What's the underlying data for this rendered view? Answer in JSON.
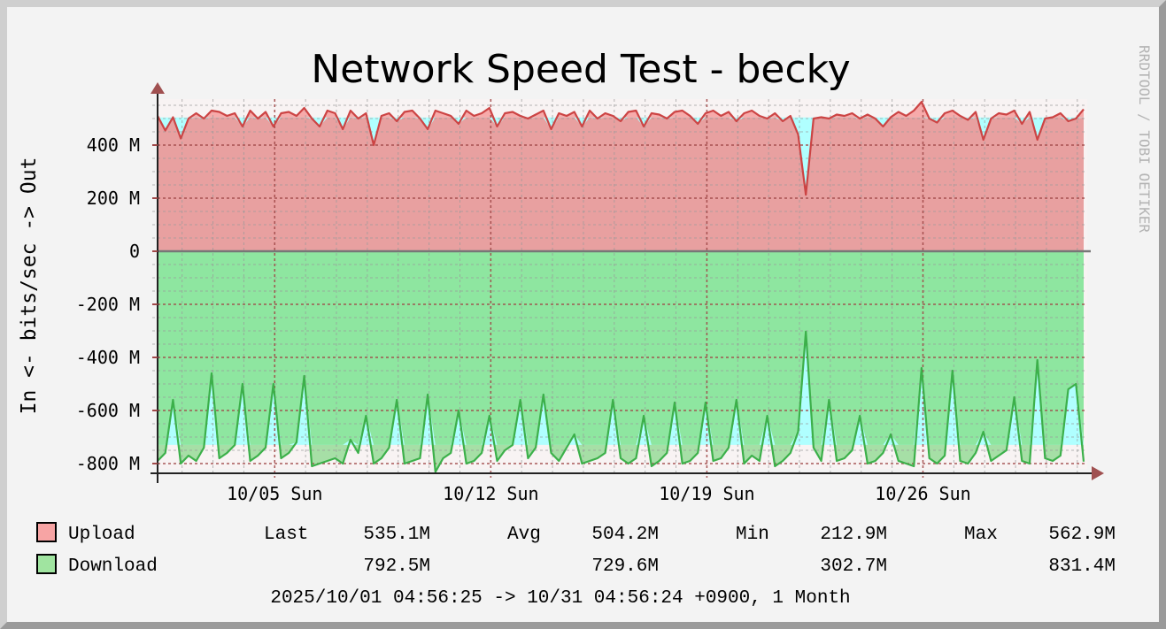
{
  "chart_data": {
    "type": "area",
    "title": "Network Speed Test - becky",
    "ylabel": "In <-  bits/sec -> Out",
    "watermark": "RRDTOOL / TOBI OETIKER",
    "ylim": [
      -837,
      573
    ],
    "y_ticks": [
      {
        "value": 400,
        "label": "400 M"
      },
      {
        "value": 200,
        "label": "200 M"
      },
      {
        "value": 0,
        "label": "0"
      },
      {
        "value": -200,
        "label": "-200 M"
      },
      {
        "value": -400,
        "label": "-400 M"
      },
      {
        "value": -600,
        "label": "-600 M"
      },
      {
        "value": -800,
        "label": "-800 M"
      }
    ],
    "x_range_days": [
      0,
      30
    ],
    "x_ticks": [
      {
        "day": 3.794,
        "label": "10/05 Sun"
      },
      {
        "day": 10.794,
        "label": "10/12 Sun"
      },
      {
        "day": 17.794,
        "label": "10/19 Sun"
      },
      {
        "day": 24.794,
        "label": "10/26 Sun"
      }
    ],
    "sample_interval_hours": 6,
    "grid": true,
    "colors": {
      "upload_fill": "#e8a0a0",
      "upload_line": "#cc4444",
      "upload_light": "#f7aaaa",
      "download_fill": "#8ee6a0",
      "download_line": "#3cb04a",
      "download_light": "#a6dfa6",
      "avg_band": "#b0ffff",
      "plot_bg": "#f8f3f3",
      "major_grid": "#a04848",
      "minor_grid": "#999999"
    },
    "series": [
      {
        "name": "Upload",
        "values": [
          510,
          455,
          505,
          425,
          500,
          520,
          500,
          530,
          525,
          510,
          520,
          470,
          530,
          500,
          525,
          470,
          520,
          525,
          510,
          540,
          500,
          470,
          530,
          520,
          460,
          530,
          500,
          520,
          400,
          510,
          520,
          490,
          525,
          530,
          500,
          460,
          530,
          520,
          510,
          480,
          530,
          510,
          520,
          540,
          470,
          520,
          525,
          510,
          500,
          515,
          530,
          460,
          520,
          510,
          525,
          470,
          530,
          500,
          520,
          510,
          490,
          525,
          530,
          470,
          520,
          515,
          500,
          525,
          530,
          510,
          480,
          520,
          530,
          510,
          525,
          490,
          520,
          530,
          510,
          500,
          520,
          490,
          510,
          440,
          212.9,
          500,
          505,
          500,
          515,
          510,
          520,
          500,
          515,
          500,
          470,
          505,
          525,
          510,
          530,
          562.9,
          500,
          485,
          520,
          530,
          510,
          495,
          525,
          420,
          500,
          520,
          515,
          530,
          480,
          525,
          420,
          500,
          505,
          520,
          490,
          500,
          535.1
        ],
        "stats": {
          "last": "535.1M",
          "avg": "504.2M",
          "min": "212.9M",
          "max": "562.9M"
        },
        "avg_value": 504.2
      },
      {
        "name": "Download",
        "values": [
          -790,
          -760,
          -560,
          -800,
          -770,
          -790,
          -740,
          -460,
          -780,
          -760,
          -730,
          -500,
          -790,
          -770,
          -740,
          -500,
          -780,
          -760,
          -720,
          -470,
          -810,
          -800,
          -790,
          -780,
          -800,
          -710,
          -760,
          -620,
          -800,
          -780,
          -740,
          -560,
          -800,
          -790,
          -780,
          -540,
          -831.4,
          -780,
          -760,
          -600,
          -800,
          -790,
          -760,
          -620,
          -790,
          -750,
          -730,
          -560,
          -780,
          -740,
          -540,
          -760,
          -790,
          -740,
          -690,
          -800,
          -790,
          -780,
          -760,
          -560,
          -780,
          -800,
          -780,
          -620,
          -810,
          -790,
          -760,
          -570,
          -800,
          -790,
          -760,
          -570,
          -790,
          -780,
          -740,
          -560,
          -800,
          -770,
          -790,
          -620,
          -810,
          -790,
          -760,
          -680,
          -302.7,
          -740,
          -790,
          -560,
          -790,
          -780,
          -750,
          -620,
          -800,
          -790,
          -760,
          -690,
          -790,
          -800,
          -810,
          -440,
          -780,
          -800,
          -770,
          -450,
          -790,
          -800,
          -760,
          -680,
          -790,
          -770,
          -750,
          -550,
          -790,
          -800,
          -410,
          -780,
          -790,
          -770,
          -520,
          -500,
          -792.5
        ],
        "stats": {
          "last": "792.5M",
          "avg": "729.6M",
          "min": "302.7M",
          "max": "831.4M"
        },
        "avg_value": -729.6
      }
    ],
    "legend": {
      "placement": "bottom",
      "last_label": "Last",
      "avg_label": "Avg",
      "min_label": "Min",
      "max_label": "Max",
      "range_text": "2025/10/01 04:56:25 -> 10/31 04:56:24 +0900, 1 Month"
    }
  }
}
